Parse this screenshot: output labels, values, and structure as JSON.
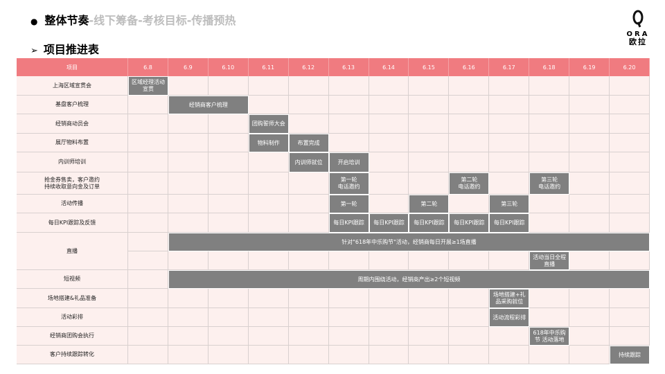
{
  "header": {
    "title_main": "整体节奏",
    "title_rest": "-线下筹备-考核目标-传播预热",
    "subtitle": "项目推进表"
  },
  "logo": {
    "latin": "ORA",
    "chinese": "欧拉"
  },
  "table": {
    "item_header": "项目",
    "dates": [
      "6.8",
      "6.9",
      "6.10",
      "6.11",
      "6.12",
      "6.13",
      "6.14",
      "6.15",
      "6.16",
      "6.17",
      "6.18",
      "6.19",
      "6.20"
    ],
    "rows": [
      {
        "label": "上海区域宣贯会",
        "lanes": [
          [
            {
              "from": "6.8",
              "to": "6.8",
              "text": "区域经理活动宣贯"
            }
          ]
        ]
      },
      {
        "label": "基盘客户梳理",
        "lanes": [
          [
            {
              "from": "6.9",
              "to": "6.10",
              "text": "经销商客户梳理"
            }
          ]
        ]
      },
      {
        "label": "经销商动员会",
        "lanes": [
          [
            {
              "from": "6.11",
              "to": "6.11",
              "text": "团购誓师大会"
            }
          ]
        ]
      },
      {
        "label": "展厅物料布置",
        "lanes": [
          [
            {
              "from": "6.11",
              "to": "6.11",
              "text": "物料制作"
            },
            {
              "from": "6.12",
              "to": "6.12",
              "text": "布置完成"
            }
          ]
        ]
      },
      {
        "label": "内训师培训",
        "lanes": [
          [
            {
              "from": "6.12",
              "to": "6.12",
              "text": "内训师就位"
            },
            {
              "from": "6.13",
              "to": "6.13",
              "text": "开启培训"
            }
          ]
        ]
      },
      {
        "label": "抢金券售卖，客户邀约\n持续收取意向金及订单",
        "lanes": [
          [
            {
              "from": "6.13",
              "to": "6.13",
              "text": "第一轮\n电话邀约"
            },
            {
              "from": "6.16",
              "to": "6.16",
              "text": "第二轮\n电话邀约"
            },
            {
              "from": "6.18",
              "to": "6.18",
              "text": "第三轮\n电话邀约"
            }
          ]
        ]
      },
      {
        "label": "活动传播",
        "lanes": [
          [
            {
              "from": "6.13",
              "to": "6.13",
              "text": "第一轮"
            },
            {
              "from": "6.15",
              "to": "6.15",
              "text": "第二轮"
            },
            {
              "from": "6.17",
              "to": "6.17",
              "text": "第三轮"
            }
          ]
        ]
      },
      {
        "label": "每日KPI跟踪及反馈",
        "lanes": [
          [
            {
              "from": "6.13",
              "to": "6.13",
              "text": "每日KPI跟踪"
            },
            {
              "from": "6.14",
              "to": "6.14",
              "text": "每日KPI跟踪"
            },
            {
              "from": "6.15",
              "to": "6.15",
              "text": "每日KPI跟踪"
            },
            {
              "from": "6.16",
              "to": "6.16",
              "text": "每日KPI跟踪"
            },
            {
              "from": "6.17",
              "to": "6.17",
              "text": "每日KPI跟踪"
            }
          ]
        ]
      },
      {
        "label": "直播",
        "lanes": [
          [
            {
              "from": "6.9",
              "to": "6.20",
              "text": "针对\"618年中乐购节\"活动，经销商每日开展≥1场直播"
            }
          ],
          [
            {
              "from": "6.18",
              "to": "6.18",
              "text": "活动当日全程直播"
            }
          ]
        ]
      },
      {
        "label": "短视频",
        "lanes": [
          [
            {
              "from": "6.9",
              "to": "6.20",
              "text": "周期内围绕活动，经销商产出≥2个短视频"
            }
          ]
        ]
      },
      {
        "label": "场地搭建&礼品准备",
        "lanes": [
          [
            {
              "from": "6.17",
              "to": "6.17",
              "text": "场地搭建+礼品采购就位"
            }
          ]
        ]
      },
      {
        "label": "活动彩排",
        "lanes": [
          [
            {
              "from": "6.17",
              "to": "6.17",
              "text": "活动流程彩排"
            }
          ]
        ]
      },
      {
        "label": "经销商团购会执行",
        "lanes": [
          [
            {
              "from": "6.18",
              "to": "6.18",
              "text": "618年中乐购节 活动落地"
            }
          ]
        ]
      },
      {
        "label": "客户持续跟踪转化",
        "lanes": [
          [
            {
              "from": "6.20",
              "to": "6.20",
              "text": "持续跟踪"
            }
          ]
        ]
      }
    ]
  }
}
